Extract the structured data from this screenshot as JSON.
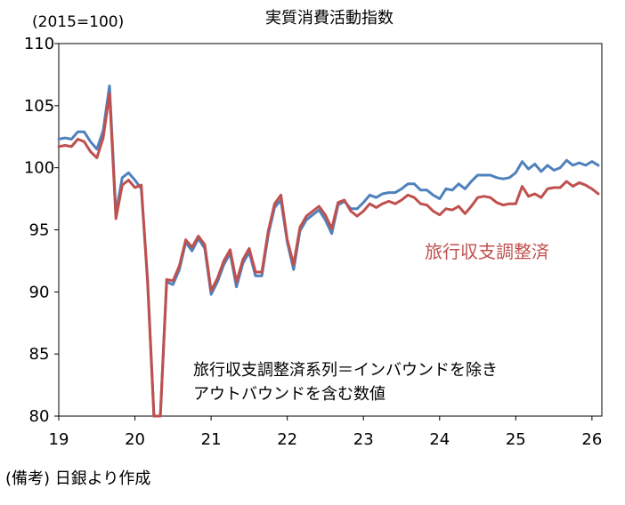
{
  "chart_data": {
    "type": "line",
    "title": "実質消費活動指数",
    "unit_label": "(2015=100)",
    "source_note": "(備考) 日銀より作成",
    "annotation": [
      "旅行収支調整済系列＝インバウンドを除き",
      "アウトバウンドを含む数値"
    ],
    "x_tick_labels": [
      "19",
      "20",
      "21",
      "22",
      "23",
      "24",
      "25",
      "26"
    ],
    "ylim": [
      80,
      110
    ],
    "y_ticks": [
      80,
      85,
      90,
      95,
      100,
      105,
      110
    ],
    "grid": false,
    "x_start": "2019-01",
    "series": [
      {
        "name": "",
        "color": "#4f81bd",
        "values": [
          102.3,
          102.4,
          102.3,
          102.9,
          102.9,
          102.1,
          101.5,
          103.0,
          106.6,
          96.3,
          99.2,
          99.6,
          99.0,
          98.3,
          91.0,
          80.0,
          80.0,
          90.8,
          90.6,
          91.8,
          94.0,
          93.3,
          94.3,
          93.5,
          89.8,
          90.8,
          92.2,
          93.1,
          90.4,
          92.3,
          93.2,
          91.3,
          91.3,
          94.6,
          96.8,
          97.4,
          94.0,
          91.8,
          94.9,
          95.8,
          96.2,
          96.6,
          95.8,
          94.7,
          97.0,
          97.3,
          96.7,
          96.7,
          97.2,
          97.8,
          97.6,
          97.9,
          98.0,
          98.0,
          98.3,
          98.7,
          98.7,
          98.2,
          98.2,
          97.8,
          97.5,
          98.3,
          98.2,
          98.7,
          98.3,
          98.9,
          99.4,
          99.4,
          99.4,
          99.2,
          99.1,
          99.2,
          99.6,
          100.5,
          99.9,
          100.3,
          99.7,
          100.2,
          99.8,
          100.0,
          100.6,
          100.2,
          100.4,
          100.2,
          100.5,
          100.2
        ]
      },
      {
        "name": "旅行収支調整済",
        "color": "#c0504d",
        "values": [
          101.7,
          101.8,
          101.7,
          102.3,
          102.1,
          101.3,
          100.8,
          102.4,
          106.0,
          95.9,
          98.6,
          99.0,
          98.4,
          98.6,
          90.7,
          80.0,
          80.0,
          91.0,
          90.9,
          92.1,
          94.2,
          93.6,
          94.5,
          93.8,
          90.1,
          91.1,
          92.5,
          93.4,
          90.8,
          92.6,
          93.5,
          91.6,
          91.6,
          94.9,
          97.1,
          97.8,
          94.2,
          92.2,
          95.2,
          96.1,
          96.5,
          96.9,
          96.2,
          95.1,
          97.2,
          97.4,
          96.5,
          96.1,
          96.5,
          97.1,
          96.8,
          97.1,
          97.3,
          97.1,
          97.4,
          97.8,
          97.6,
          97.1,
          97.0,
          96.5,
          96.2,
          96.7,
          96.6,
          96.9,
          96.3,
          96.9,
          97.6,
          97.7,
          97.6,
          97.2,
          97.0,
          97.1,
          97.1,
          98.5,
          97.7,
          97.9,
          97.6,
          98.3,
          98.4,
          98.4,
          98.9,
          98.5,
          98.8,
          98.6,
          98.3,
          97.9
        ]
      }
    ]
  }
}
